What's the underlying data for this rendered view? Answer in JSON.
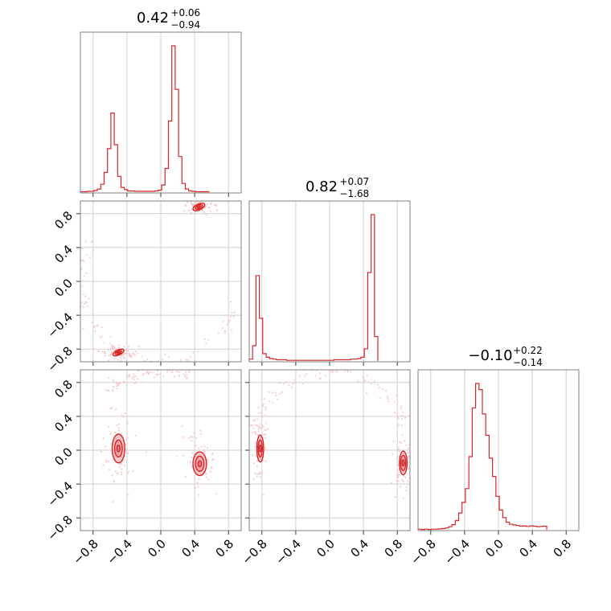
{
  "chart_data": {
    "type": "corner",
    "parameters": 3,
    "tick_values": [
      -0.8,
      -0.4,
      0.0,
      0.4,
      0.8
    ],
    "tick_labels": [
      "−0.8",
      "−0.4",
      "0.0",
      "0.4",
      "0.8"
    ],
    "grid": true,
    "colors": {
      "line": "#d62728",
      "fill": "#f4b6b8",
      "points": "#f5c6c7",
      "frame": "#808080"
    },
    "diagonal": [
      {
        "range": [
          -0.95,
          0.95
        ],
        "summary": {
          "median": "0.42",
          "plus": "+0.06",
          "minus": "−0.94"
        },
        "histogram": {
          "x_start": -0.95,
          "bin_width": 0.04,
          "counts": [
            1,
            1,
            2,
            2,
            4,
            8,
            20,
            50,
            110,
            200,
            120,
            40,
            12,
            6,
            3,
            3,
            2,
            2,
            2,
            2,
            2,
            2,
            3,
            5,
            18,
            60,
            180,
            370,
            260,
            90,
            22,
            8,
            3,
            2,
            1,
            1,
            1,
            1
          ]
        }
      },
      {
        "range": [
          -0.95,
          0.95
        ],
        "summary": {
          "median": "0.82",
          "plus": "+0.07",
          "minus": "−1.68"
        },
        "histogram": {
          "x_start": -0.95,
          "bin_width": 0.04,
          "counts": [
            3,
            25,
            140,
            70,
            12,
            6,
            4,
            3,
            2,
            2,
            2,
            1,
            1,
            1,
            1,
            1,
            1,
            1,
            1,
            1,
            1,
            1,
            1,
            1,
            1,
            2,
            2,
            2,
            2,
            2,
            3,
            3,
            4,
            6,
            20,
            145,
            240,
            40
          ]
        }
      },
      {
        "range": [
          -0.95,
          0.95
        ],
        "summary": {
          "median": "−0.10",
          "plus": "+0.22",
          "minus": "−0.14"
        },
        "histogram": {
          "x_start": -0.95,
          "bin_width": 0.04,
          "counts": [
            2,
            1,
            2,
            1,
            2,
            2,
            3,
            4,
            6,
            10,
            17,
            30,
            55,
            90,
            135,
            240,
            400,
            480,
            460,
            380,
            310,
            235,
            175,
            110,
            65,
            40,
            25,
            18,
            16,
            14,
            12,
            13,
            11,
            13,
            12,
            10,
            11,
            12
          ]
        }
      }
    ],
    "pairs": [
      {
        "row": 1,
        "col": 0,
        "xrange": [
          -0.95,
          0.95
        ],
        "yrange": [
          -0.95,
          0.95
        ],
        "clusters": [
          {
            "center": [
              0.45,
              0.88
            ],
            "radii": [
              [
                0.075,
                0.035
              ],
              [
                0.045,
                0.022
              ],
              [
                0.02,
                0.01
              ]
            ],
            "angle": -25
          },
          {
            "center": [
              -0.5,
              -0.84
            ],
            "radii": [
              [
                0.07,
                0.03
              ],
              [
                0.04,
                0.018
              ],
              [
                0.018,
                0.008
              ]
            ],
            "angle": -25
          }
        ],
        "scatter_arc": {
          "from_deg": 150,
          "to_deg": 345,
          "radius": 0.94
        }
      },
      {
        "row": 2,
        "col": 0,
        "xrange": [
          -0.95,
          0.95
        ],
        "yrange": [
          -0.95,
          0.95
        ],
        "clusters": [
          {
            "center": [
              -0.5,
              0.02
            ],
            "radii": [
              [
                0.075,
                0.17
              ],
              [
                0.045,
                0.1
              ],
              [
                0.018,
                0.04
              ]
            ],
            "angle": 0
          },
          {
            "center": [
              0.46,
              -0.16
            ],
            "radii": [
              [
                0.08,
                0.14
              ],
              [
                0.05,
                0.09
              ],
              [
                0.02,
                0.035
              ]
            ],
            "angle": 0
          }
        ],
        "scatter_arc": {
          "from_deg": 70,
          "to_deg": 135,
          "radius": 0.94
        }
      },
      {
        "row": 2,
        "col": 1,
        "xrange": [
          -0.95,
          0.95
        ],
        "yrange": [
          -0.95,
          0.95
        ],
        "clusters": [
          {
            "center": [
              -0.82,
              0.02
            ],
            "radii": [
              [
                0.04,
                0.16
              ],
              [
                0.025,
                0.1
              ],
              [
                0.012,
                0.04
              ]
            ],
            "angle": 0
          },
          {
            "center": [
              0.87,
              -0.15
            ],
            "radii": [
              [
                0.045,
                0.14
              ],
              [
                0.03,
                0.09
              ],
              [
                0.013,
                0.035
              ]
            ],
            "angle": 0
          }
        ],
        "scatter_arc": {
          "from_deg": 20,
          "to_deg": 170,
          "radius": 0.93
        }
      }
    ]
  }
}
